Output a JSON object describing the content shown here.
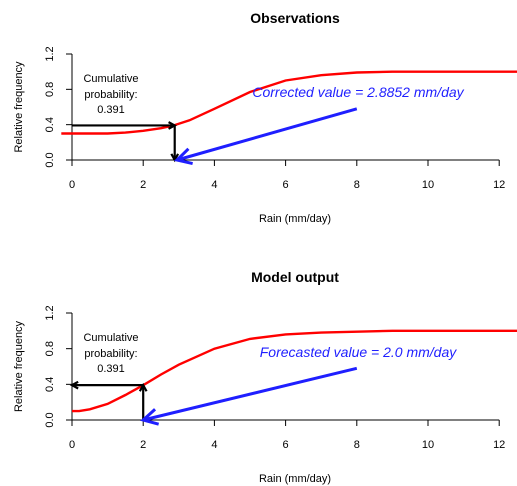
{
  "chart_data": [
    {
      "type": "line",
      "title": "Observations",
      "xlabel": "Rain (mm/day)",
      "ylabel": "Relative frequency",
      "xlim": [
        0,
        12.5
      ],
      "ylim": [
        0,
        1.2
      ],
      "xticks": [
        "0",
        "2",
        "4",
        "6",
        "8",
        "10",
        "12"
      ],
      "yticks": [
        "0.0",
        "0.4",
        "0.8",
        "1.2"
      ],
      "series": [
        {
          "color": "#ff0000",
          "x": [
            -0.3,
            0,
            1,
            1.5,
            2,
            2.5,
            2.85,
            3.3,
            4,
            5,
            6,
            7,
            8,
            9,
            10,
            11,
            12,
            12.5
          ],
          "y": [
            0.3,
            0.3,
            0.3,
            0.31,
            0.33,
            0.36,
            0.39,
            0.45,
            0.58,
            0.77,
            0.9,
            0.96,
            0.99,
            1.0,
            1.0,
            1.0,
            1.0,
            1.0
          ]
        }
      ],
      "cumulative_label": "Cumulative probability:",
      "cumulative_value": "0.391",
      "cumulative_probability": 0.391,
      "value_x": 2.8852,
      "annotation": "Corrected value = 2.8852 mm/day",
      "annotation_color": "#1f1fff",
      "blue_arrow": {
        "from": [
          8,
          0.58
        ],
        "to": [
          2.95,
          0
        ]
      }
    },
    {
      "type": "line",
      "title": "Model output",
      "xlabel": "Rain (mm/day)",
      "ylabel": "Relative frequency",
      "xlim": [
        0,
        12.5
      ],
      "ylim": [
        0,
        1.2
      ],
      "xticks": [
        "0",
        "2",
        "4",
        "6",
        "8",
        "10",
        "12"
      ],
      "yticks": [
        "0.0",
        "0.4",
        "0.8",
        "1.2"
      ],
      "series": [
        {
          "color": "#ff0000",
          "x": [
            0,
            0.2,
            0.5,
            1,
            1.5,
            2,
            2.5,
            3,
            4,
            5,
            6,
            7,
            8,
            9,
            10,
            11,
            12,
            12.5
          ],
          "y": [
            0.1,
            0.1,
            0.12,
            0.18,
            0.28,
            0.39,
            0.51,
            0.62,
            0.8,
            0.91,
            0.96,
            0.98,
            0.99,
            1.0,
            1.0,
            1.0,
            1.0,
            1.0
          ]
        }
      ],
      "cumulative_label": "Cumulative probability:",
      "cumulative_value": "0.391",
      "cumulative_probability": 0.391,
      "value_x": 2.0,
      "annotation": "Forecasted value = 2.0 mm/day",
      "annotation_color": "#1f1fff",
      "blue_arrow": {
        "from": [
          8,
          0.58
        ],
        "to": [
          2.0,
          0
        ]
      }
    }
  ]
}
